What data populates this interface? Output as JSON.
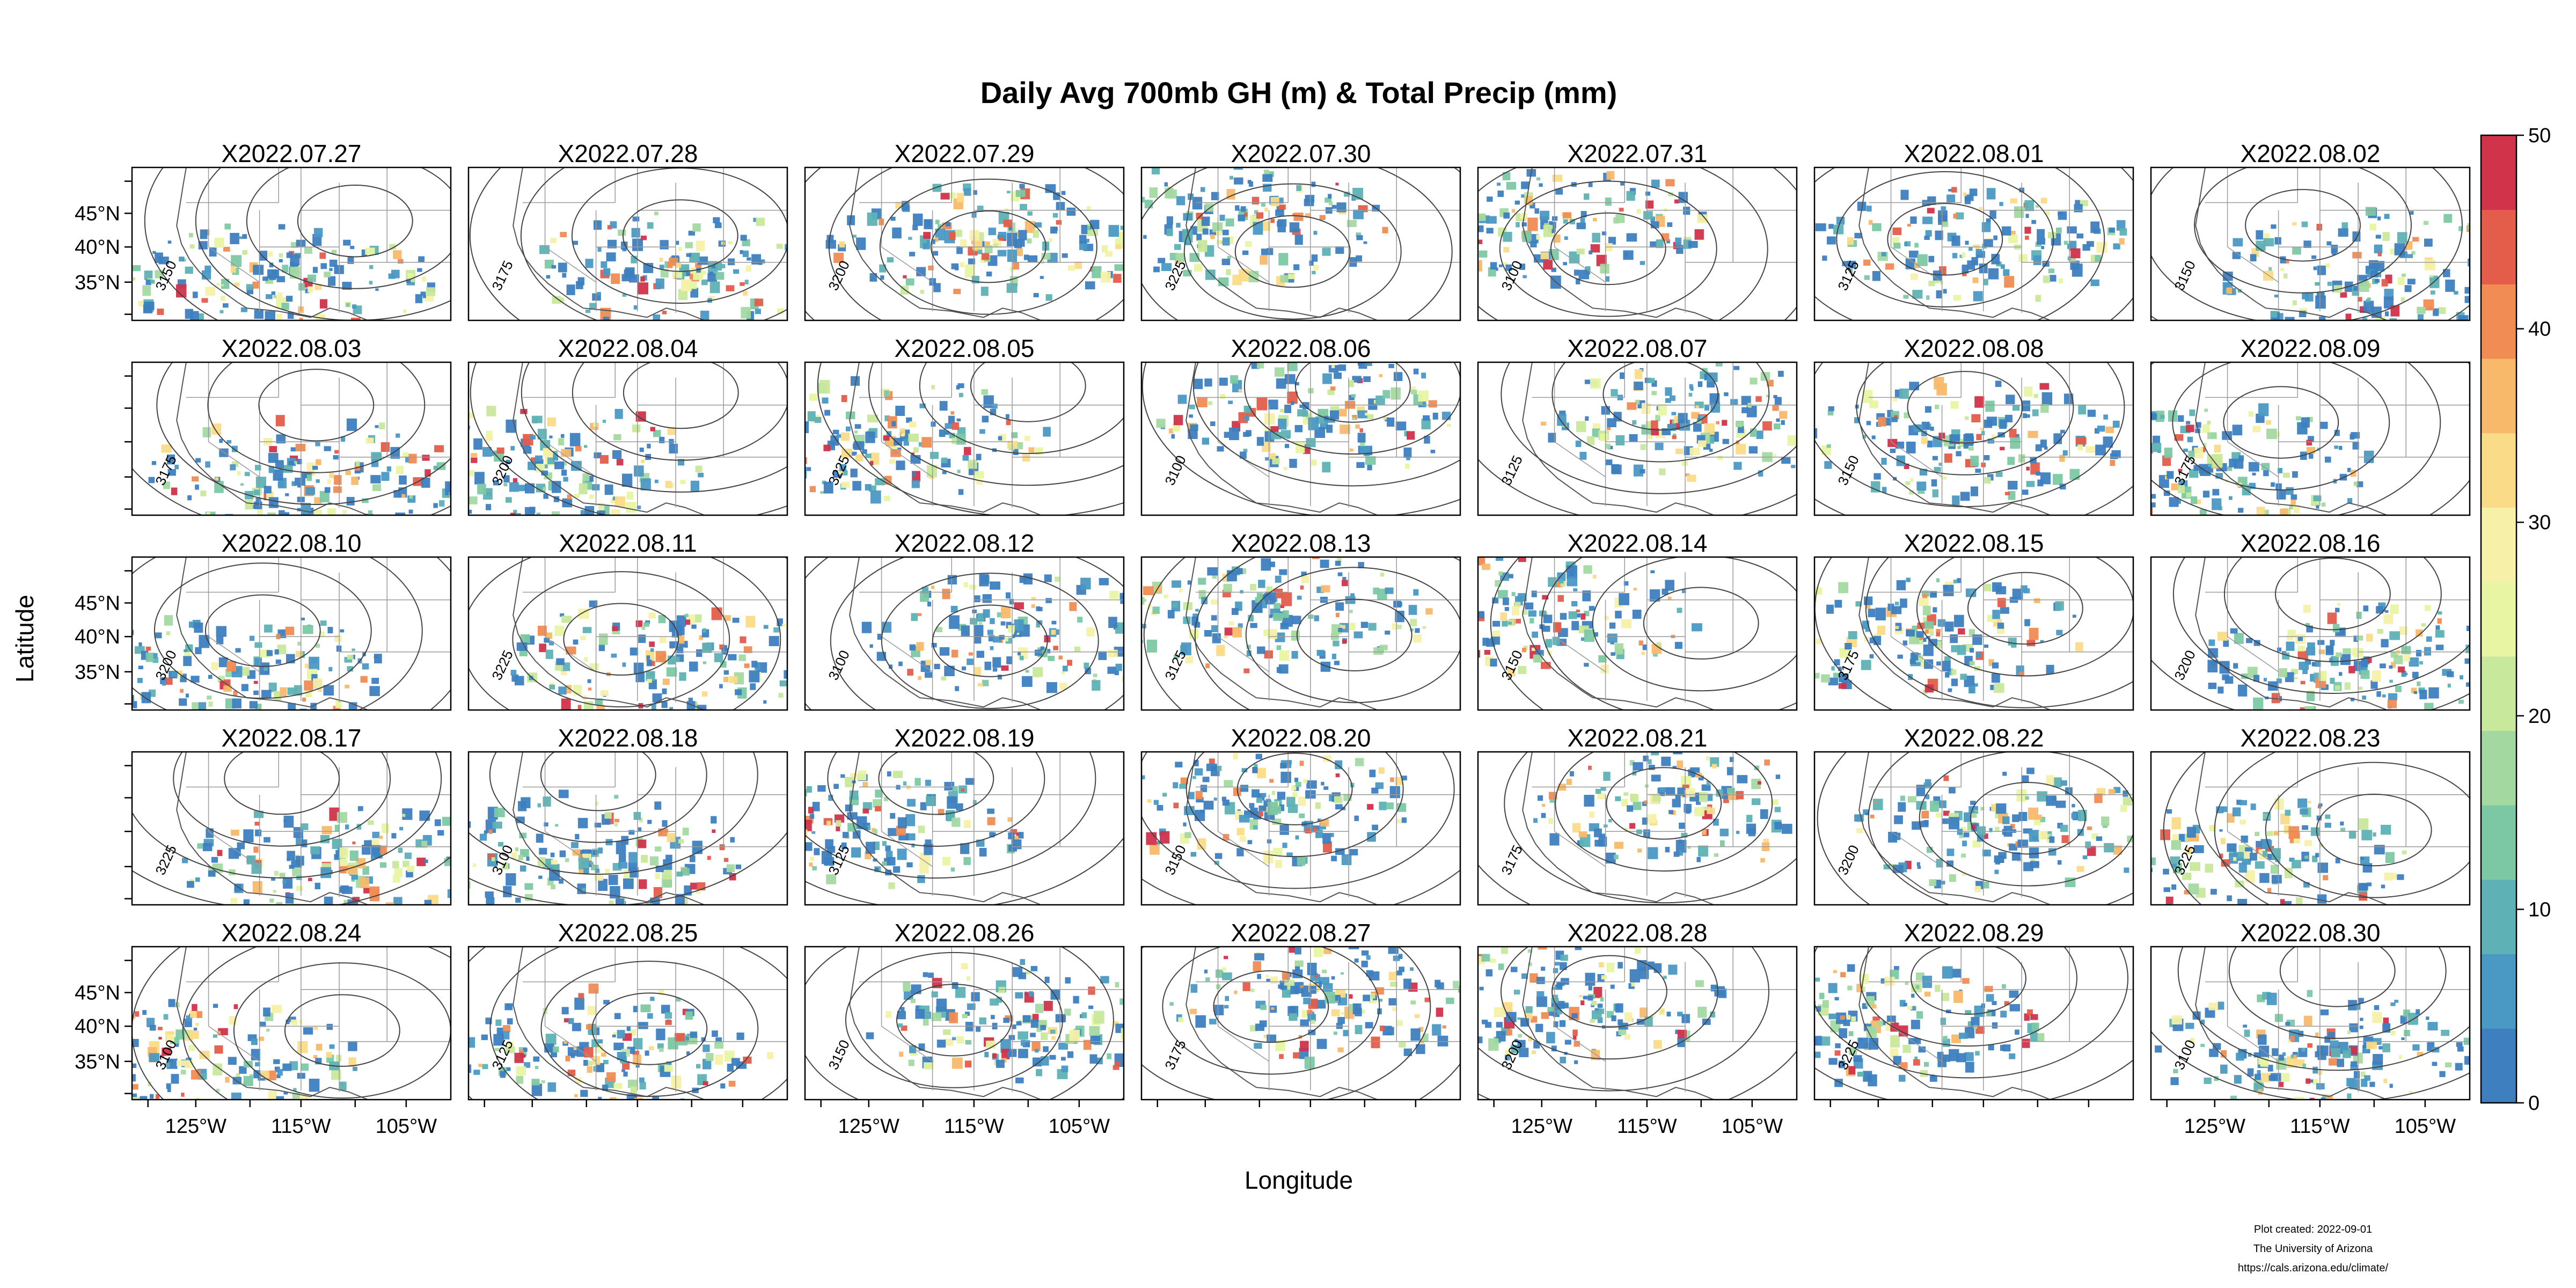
{
  "title": "Daily Avg 700mb GH (m) & Total Precip (mm)",
  "xlabel": "Longitude",
  "ylabel": "Latitude",
  "panels": [
    "X2022.07.27",
    "X2022.07.28",
    "X2022.07.29",
    "X2022.07.30",
    "X2022.07.31",
    "X2022.08.01",
    "X2022.08.02",
    "X2022.08.03",
    "X2022.08.04",
    "X2022.08.05",
    "X2022.08.06",
    "X2022.08.07",
    "X2022.08.08",
    "X2022.08.09",
    "X2022.08.10",
    "X2022.08.11",
    "X2022.08.12",
    "X2022.08.13",
    "X2022.08.14",
    "X2022.08.15",
    "X2022.08.16",
    "X2022.08.17",
    "X2022.08.18",
    "X2022.08.19",
    "X2022.08.20",
    "X2022.08.21",
    "X2022.08.22",
    "X2022.08.23",
    "X2022.08.24",
    "X2022.08.25",
    "X2022.08.26",
    "X2022.08.27",
    "X2022.08.28",
    "X2022.08.29",
    "X2022.08.30"
  ],
  "lat_ticks": [
    "45°N",
    "40°N",
    "35°N"
  ],
  "lon_ticks": [
    "125°W",
    "115°W",
    "105°W"
  ],
  "colorbar": {
    "ticks": [
      "0",
      "10",
      "20",
      "30",
      "40",
      "50"
    ],
    "min": 0,
    "max": 50,
    "colors": [
      "#3d7fbf",
      "#4a98c4",
      "#5eb1b5",
      "#7cc8a4",
      "#a3d9a0",
      "#c8e89c",
      "#e8f5a2",
      "#f6f0a8",
      "#fadb87",
      "#f8b96a",
      "#f08c54",
      "#e35d4a",
      "#d0334a"
    ]
  },
  "contour_labels": [
    "3100",
    "3125",
    "3150",
    "3175",
    "3200",
    "3225"
  ],
  "credit": {
    "line1": "Plot created: 2022-09-01",
    "line2": "The University of Arizona",
    "line3": "https://cals.arizona.edu/climate/"
  }
}
